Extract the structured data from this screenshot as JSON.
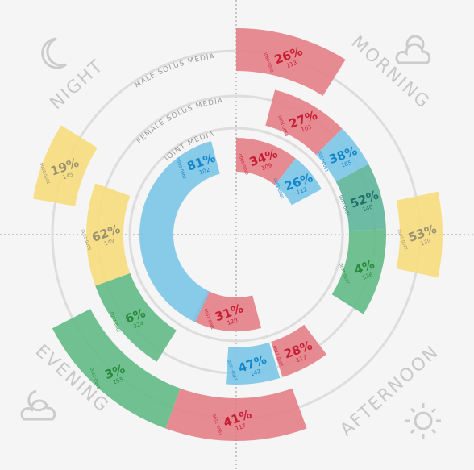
{
  "labels": {
    "night": "NIGHT",
    "morning": "MORNING",
    "afternoon": "AFTERNOON",
    "evening": "EVENING",
    "male": "MALE SOLUS MEDIA",
    "female": "FEMALE SOLUS MEDIA",
    "joint": "JOINT MEDIA"
  },
  "segments": [
    {
      "ring": "male",
      "time": "0600-0900",
      "percent": "26%",
      "index": "113",
      "color": "red"
    },
    {
      "ring": "male",
      "time": "1200-1400",
      "percent": "53%",
      "index": "139",
      "color": "yellow"
    },
    {
      "ring": "male",
      "time": "1900-2100",
      "percent": "41%",
      "index": "117",
      "color": "red"
    },
    {
      "ring": "male",
      "time": "1600-1900",
      "percent": "3%",
      "index": "255",
      "color": "green"
    },
    {
      "ring": "male",
      "time": "2200-0000",
      "percent": "19%",
      "index": "145",
      "color": "yellow"
    },
    {
      "ring": "female",
      "time": "0900-1000",
      "percent": "27%",
      "index": "103",
      "color": "red"
    },
    {
      "ring": "female",
      "time": "1000-1100",
      "percent": "38%",
      "index": "185",
      "color": "blue"
    },
    {
      "ring": "female",
      "time": "1200-1300",
      "percent": "52%",
      "index": "140",
      "color": "teal"
    },
    {
      "ring": "female",
      "time": "1300-1600",
      "percent": "4%",
      "index": "536",
      "color": "green"
    },
    {
      "ring": "female",
      "time": "1600-1700",
      "percent": "28%",
      "index": "117",
      "color": "red"
    },
    {
      "ring": "female",
      "time": "1700-1800",
      "percent": "47%",
      "index": "142",
      "color": "blue"
    },
    {
      "ring": "female",
      "time": "1900-2100",
      "percent": "6%",
      "index": "324",
      "color": "green"
    },
    {
      "ring": "female",
      "time": "0000-2030",
      "percent": "62%",
      "index": "149",
      "color": "yellow"
    },
    {
      "ring": "joint",
      "time": "0600-0900",
      "percent": "34%",
      "index": "109",
      "color": "red"
    },
    {
      "ring": "joint",
      "time": "0900-1000",
      "percent": "26%",
      "index": "112",
      "color": "blue"
    },
    {
      "ring": "joint",
      "time": "1800-1900",
      "percent": "31%",
      "index": "120",
      "color": "red"
    },
    {
      "ring": "joint",
      "time": "1900-0000",
      "percent": "81%",
      "index": "102",
      "color": "blue"
    }
  ]
}
